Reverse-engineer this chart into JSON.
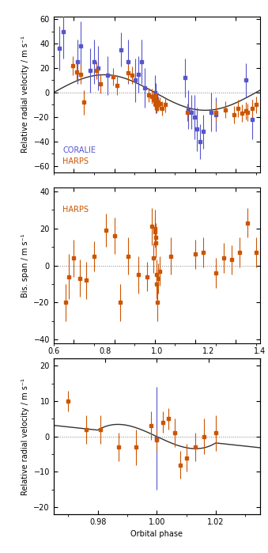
{
  "panel1": {
    "ylabel": "Relative radial velocity / m s⁻¹",
    "xlim": [
      0.5,
      1.52
    ],
    "ylim": [
      -65,
      62
    ],
    "yticks": [
      -60,
      -40,
      -20,
      0,
      20,
      40,
      60
    ],
    "xticks": [
      0.6,
      0.8,
      1.0,
      1.2,
      1.4
    ],
    "coralie_x": [
      0.527,
      0.548,
      0.617,
      0.635,
      0.68,
      0.7,
      0.718,
      0.768,
      0.832,
      0.87,
      0.905,
      0.92,
      0.935,
      0.95,
      1.0,
      1.003,
      1.005,
      1.15,
      1.165,
      1.18,
      1.195,
      1.21,
      1.225,
      1.24,
      1.28,
      1.3,
      1.45,
      1.48
    ],
    "coralie_y": [
      36,
      50,
      25,
      38,
      18,
      25,
      20,
      14,
      35,
      25,
      10,
      15,
      25,
      4,
      0,
      -2,
      -5,
      12,
      -14,
      -16,
      -20,
      -30,
      -40,
      -32,
      -16,
      -18,
      10,
      -22
    ],
    "coralie_yerr": [
      18,
      22,
      18,
      20,
      18,
      18,
      18,
      16,
      14,
      18,
      18,
      15,
      18,
      16,
      14,
      10,
      12,
      16,
      16,
      14,
      18,
      18,
      14,
      14,
      16,
      14,
      14,
      16
    ],
    "harps_x": [
      0.595,
      0.615,
      0.635,
      0.65,
      0.71,
      0.73,
      0.795,
      0.815,
      0.87,
      0.888,
      0.97,
      0.985,
      0.995,
      1.0,
      1.002,
      1.004,
      1.006,
      1.008,
      1.01,
      1.012,
      1.015,
      1.018,
      1.025,
      1.035,
      1.05,
      1.16,
      1.3,
      1.35,
      1.39,
      1.41,
      1.43,
      1.45,
      1.46,
      1.48,
      1.5
    ],
    "harps_y": [
      22,
      17,
      15,
      -8,
      18,
      7,
      13,
      6,
      16,
      14,
      -2,
      -3,
      -6,
      -2,
      -5,
      -8,
      -10,
      -8,
      -12,
      -10,
      -8,
      -10,
      -9,
      -13,
      -10,
      -16,
      -16,
      -14,
      -18,
      -13,
      -17,
      -15,
      -16,
      -13,
      -10
    ],
    "harps_yerr": [
      8,
      7,
      8,
      10,
      7,
      8,
      7,
      8,
      7,
      7,
      6,
      6,
      5,
      5,
      4,
      4,
      4,
      4,
      5,
      5,
      5,
      5,
      5,
      6,
      6,
      7,
      8,
      7,
      7,
      7,
      7,
      7,
      7,
      7,
      7
    ],
    "legend_coralie": "CORALIE",
    "legend_harps": "HARPS",
    "coralie_color": "#5555cc",
    "harps_color": "#cc5500"
  },
  "panel2": {
    "ylabel": "Bis. span / m s⁻¹",
    "xlim": [
      0.5,
      1.52
    ],
    "ylim": [
      -42,
      42
    ],
    "yticks": [
      -40,
      -20,
      0,
      20,
      40
    ],
    "xticks": [
      0.6,
      0.8,
      1.0,
      1.2,
      1.4
    ],
    "harps_x": [
      0.56,
      0.575,
      0.6,
      0.63,
      0.66,
      0.7,
      0.76,
      0.8,
      0.83,
      0.87,
      0.92,
      0.96,
      0.985,
      0.995,
      1.0,
      1.002,
      1.004,
      1.006,
      1.008,
      1.01,
      1.012,
      1.015,
      1.025,
      1.08,
      1.2,
      1.24,
      1.3,
      1.34,
      1.38,
      1.42,
      1.46,
      1.5
    ],
    "harps_y": [
      -20,
      -6,
      4,
      -7,
      -8,
      5,
      19,
      16,
      -20,
      5,
      -5,
      -6,
      21,
      4,
      20,
      18,
      15,
      12,
      -5,
      -10,
      -20,
      -7,
      -3,
      5,
      6,
      7,
      -4,
      4,
      3,
      7,
      23,
      7
    ],
    "harps_yerr": [
      10,
      12,
      10,
      10,
      10,
      8,
      9,
      10,
      10,
      10,
      10,
      8,
      10,
      8,
      10,
      8,
      8,
      8,
      8,
      8,
      10,
      8,
      8,
      10,
      8,
      8,
      8,
      8,
      8,
      8,
      8,
      8
    ],
    "harps_color": "#cc5500",
    "legend_harps": "HARPS"
  },
  "panel3": {
    "ylabel": "Relative radial velocity / m s⁻¹",
    "xlabel": "Orbital phase",
    "xlim": [
      0.965,
      1.035
    ],
    "ylim": [
      -22,
      22
    ],
    "yticks": [
      -20,
      -10,
      0,
      10,
      20
    ],
    "xticks": [
      0.98,
      1.0,
      1.02
    ],
    "coralie_x": [
      1.0
    ],
    "coralie_y": [
      -0.5
    ],
    "coralie_yerr": [
      14.5
    ],
    "harps_x": [
      0.97,
      0.976,
      0.981,
      0.987,
      0.993,
      0.998,
      1.0,
      1.002,
      1.004,
      1.006,
      1.008,
      1.01,
      1.013,
      1.016,
      1.02
    ],
    "harps_y": [
      10,
      2,
      2,
      -3,
      -3,
      3,
      -1,
      4,
      5,
      1,
      -8,
      -6,
      -3,
      0,
      1
    ],
    "harps_yerr": [
      3,
      4,
      4,
      4,
      5,
      4,
      3,
      3,
      3,
      4,
      4,
      4,
      4,
      5,
      5
    ],
    "coralie_color": "#5555cc",
    "harps_color": "#cc5500"
  },
  "top_axis_xticks": [
    0.6,
    0.8,
    1.0,
    1.2,
    1.4
  ],
  "bg_color": "#ffffff",
  "curve_color": "#333333"
}
